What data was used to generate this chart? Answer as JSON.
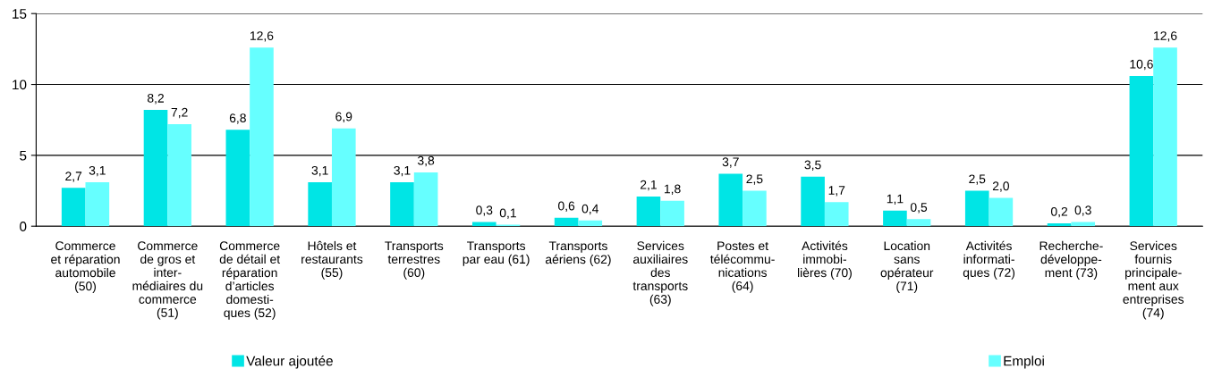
{
  "chart_data": {
    "type": "bar",
    "categories": [
      "Commerce\net réparation\nautomobile\n(50)",
      "Commerce\nde gros et\ninter-\nmédiaires du\ncommerce\n(51)",
      "Commerce\nde détail et\nréparation\nd’articles\ndomesti-\nques (52)",
      "Hôtels et\nrestaurants\n(55)",
      "Transports\nterrestres\n(60)",
      "Transports\npar eau (61)",
      "Transports\naériens (62)",
      "Services\nauxiliaires\ndes\ntransports\n(63)",
      "Postes et\ntélécommu-\nnications\n(64)",
      "Activités\nimmobi-\nlières (70)",
      "Location\nsans\nopérateur\n(71)",
      "Activités\ninformati-\nques (72)",
      "Recherche-\ndéveloppe-\nment (73)",
      "Services\nfournis\nprincipale-\nment aux\nentreprises\n(74)"
    ],
    "series": [
      {
        "name": "Valeur ajoutée",
        "color": "#00e5e5",
        "values": [
          2.7,
          8.2,
          6.8,
          3.1,
          3.1,
          0.3,
          0.6,
          2.1,
          3.7,
          3.5,
          1.1,
          2.5,
          0.2,
          10.6
        ],
        "value_labels": [
          "2,7",
          "8,2",
          "6,8",
          "3,1",
          "3,1",
          "0,3",
          "0,6",
          "2,1",
          "3,7",
          "3,5",
          "1,1",
          "2,5",
          "0,2",
          "10,6"
        ]
      },
      {
        "name": "Emploi",
        "color": "#66ffff",
        "values": [
          3.1,
          7.2,
          12.6,
          6.9,
          3.8,
          0.1,
          0.4,
          1.8,
          2.5,
          1.7,
          0.5,
          2.0,
          0.3,
          12.6
        ],
        "value_labels": [
          "3,1",
          "7,2",
          "12,6",
          "6,9",
          "3,8",
          "0,1",
          "0,4",
          "1,8",
          "2,5",
          "1,7",
          "0,5",
          "2,0",
          "0,3",
          "12,6"
        ]
      }
    ],
    "ylim": [
      0,
      15
    ],
    "yticks": [
      0,
      5,
      10,
      15
    ],
    "grid": "y",
    "legend": "bottom"
  }
}
